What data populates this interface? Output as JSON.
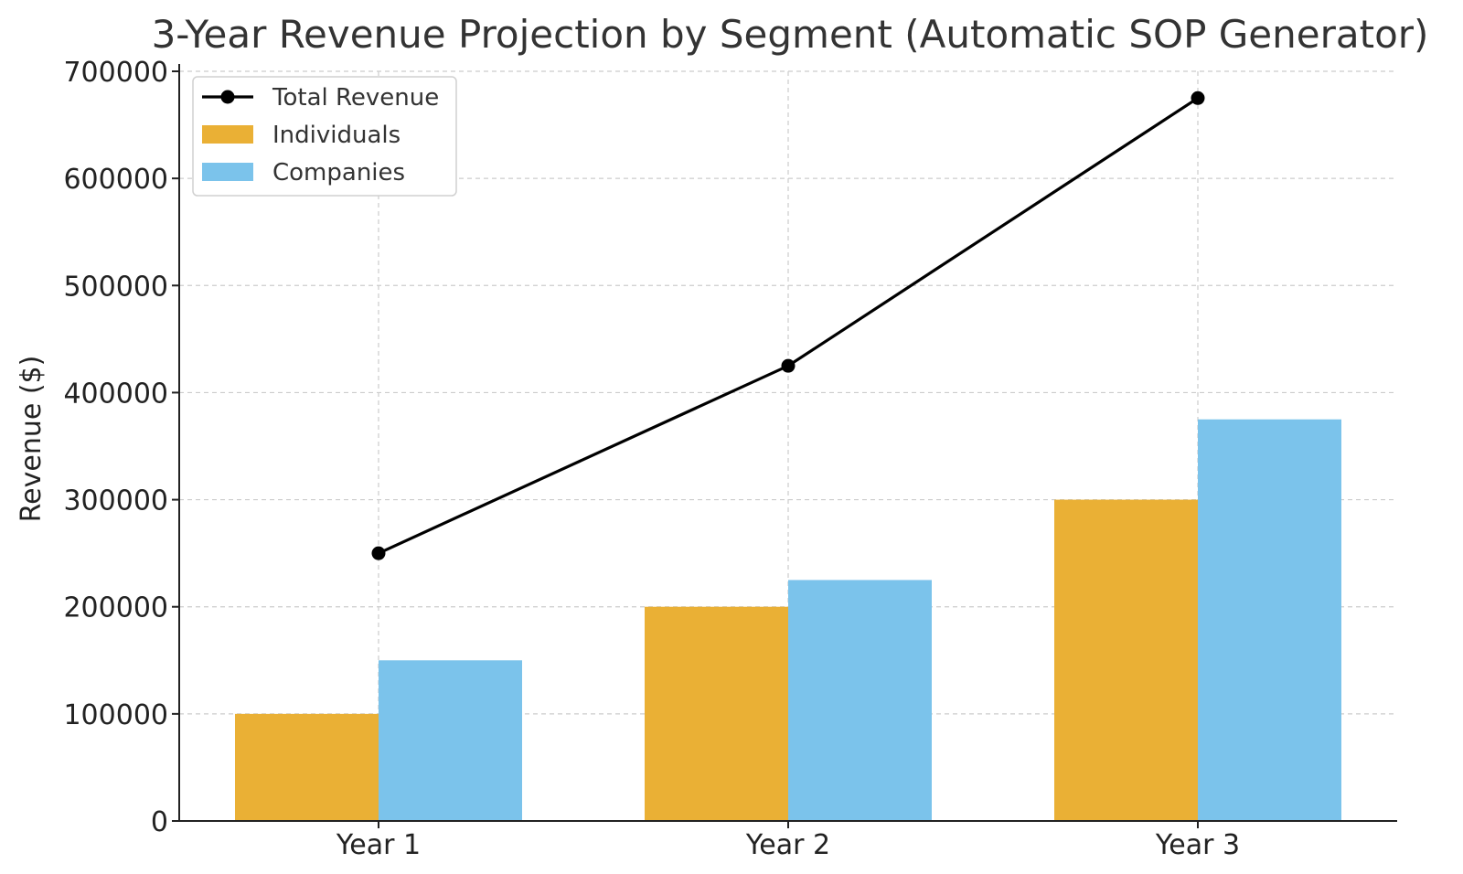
{
  "chart_data": {
    "type": "bar",
    "title": "3-Year Revenue Projection by Segment (Automatic SOP Generator)",
    "xlabel": "",
    "ylabel": "Revenue ($)",
    "categories": [
      "Year 1",
      "Year 2",
      "Year 3"
    ],
    "ylim": [
      0,
      700000
    ],
    "yticks": [
      "0",
      "100000",
      "200000",
      "300000",
      "400000",
      "500000",
      "600000",
      "700000"
    ],
    "grid": true,
    "legend_position": "top-left",
    "series": [
      {
        "name": "Individuals",
        "type": "bar",
        "color": "#EAB035",
        "values": [
          100000,
          200000,
          300000
        ]
      },
      {
        "name": "Companies",
        "type": "bar",
        "color": "#7BC3EB",
        "values": [
          150000,
          225000,
          375000
        ]
      },
      {
        "name": "Total Revenue",
        "type": "line",
        "color": "#000000",
        "values": [
          250000,
          425000,
          675000
        ]
      }
    ]
  }
}
